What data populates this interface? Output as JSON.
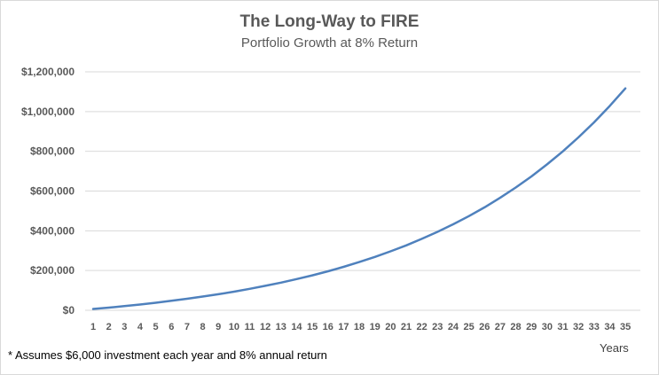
{
  "chart_data": {
    "type": "line",
    "title": "The Long-Way to FIRE",
    "subtitle": "Portfolio Growth at 8% Return",
    "xlabel": "Years",
    "ylabel": "",
    "footnote": "* Assumes $6,000 investment each year and 8% annual return",
    "x": [
      1,
      2,
      3,
      4,
      5,
      6,
      7,
      8,
      9,
      10,
      11,
      12,
      13,
      14,
      15,
      16,
      17,
      18,
      19,
      20,
      21,
      22,
      23,
      24,
      25,
      26,
      27,
      28,
      29,
      30,
      31,
      32,
      33,
      34,
      35
    ],
    "x_tick_labels": [
      "1",
      "2",
      "3",
      "4",
      "5",
      "6",
      "7",
      "8",
      "9",
      "10",
      "11",
      "12",
      "13",
      "14",
      "15",
      "16",
      "17",
      "18",
      "19",
      "20",
      "21",
      "22",
      "23",
      "24",
      "25",
      "26",
      "27",
      "28",
      "29",
      "30",
      "31",
      "32",
      "33",
      "34",
      "35"
    ],
    "series": [
      {
        "values": [
          6480,
          13478,
          21037,
          29200,
          38016,
          47537,
          57820,
          68926,
          80920,
          93874,
          107864,
          122973,
          139291,
          156914,
          175947,
          196503,
          218703,
          242680,
          268574,
          296540,
          326743,
          359362,
          394591,
          432638,
          473729,
          518107,
          566036,
          617799,
          673703,
          734079,
          799285,
          869708,
          945765,
          1027906,
          1116619
        ]
      }
    ],
    "ylim": [
      0,
      1200000
    ],
    "y_ticks": [
      0,
      200000,
      400000,
      600000,
      800000,
      1000000,
      1200000
    ],
    "y_tick_labels": [
      "$0",
      "$200,000",
      "$400,000",
      "$600,000",
      "$800,000",
      "$1,000,000",
      "$1,200,000"
    ],
    "grid": true,
    "legend": "none",
    "line_color": "#4f81bd",
    "grid_color": "#d9d9d9"
  }
}
